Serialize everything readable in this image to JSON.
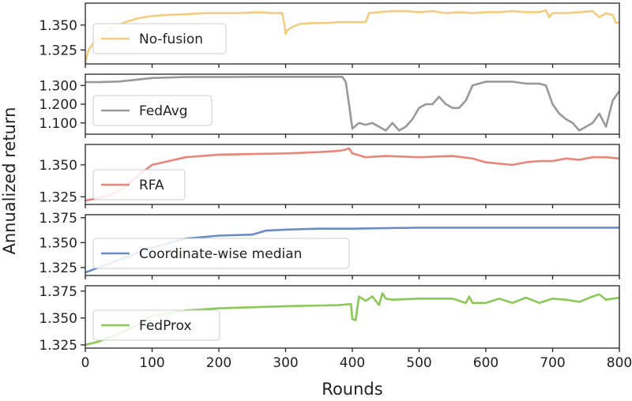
{
  "chart_data": {
    "type": "line",
    "xlabel": "Rounds",
    "ylabel": "Annualized return",
    "x_ticks": [
      "0",
      "100",
      "200",
      "300",
      "400",
      "500",
      "600",
      "700",
      "800"
    ],
    "xlim": [
      0,
      800
    ],
    "legend_position": "lower-left",
    "panels": [
      {
        "name": "No-fusion",
        "color": "#f5cc7f",
        "ylim": [
          1.311,
          1.372
        ],
        "y_ticks": [
          {
            "v": 1.325,
            "label": "1.325"
          },
          {
            "v": 1.35,
            "label": "1.350"
          }
        ],
        "x": [
          0,
          2,
          5,
          10,
          20,
          30,
          40,
          50,
          60,
          80,
          100,
          120,
          150,
          180,
          200,
          230,
          260,
          280,
          295,
          298,
          300,
          303,
          310,
          320,
          340,
          360,
          380,
          400,
          420,
          425,
          440,
          460,
          480,
          500,
          520,
          540,
          560,
          580,
          600,
          620,
          640,
          660,
          680,
          690,
          695,
          700,
          720,
          740,
          760,
          770,
          780,
          790,
          795,
          800
        ],
        "y": [
          1.311,
          1.318,
          1.325,
          1.33,
          1.338,
          1.343,
          1.347,
          1.35,
          1.353,
          1.357,
          1.359,
          1.36,
          1.361,
          1.362,
          1.362,
          1.362,
          1.363,
          1.362,
          1.362,
          1.352,
          1.341,
          1.345,
          1.348,
          1.351,
          1.352,
          1.352,
          1.353,
          1.353,
          1.353,
          1.362,
          1.363,
          1.364,
          1.364,
          1.363,
          1.364,
          1.362,
          1.363,
          1.362,
          1.363,
          1.363,
          1.364,
          1.363,
          1.363,
          1.365,
          1.358,
          1.362,
          1.362,
          1.363,
          1.364,
          1.358,
          1.362,
          1.36,
          1.352,
          1.353
        ]
      },
      {
        "name": "FedAvg",
        "color": "#999999",
        "ylim": [
          1.04,
          1.36
        ],
        "y_ticks": [
          {
            "v": 1.1,
            "label": "1.100"
          },
          {
            "v": 1.2,
            "label": "1.200"
          },
          {
            "v": 1.3,
            "label": "1.300"
          }
        ],
        "x": [
          0,
          20,
          50,
          80,
          100,
          150,
          200,
          250,
          300,
          350,
          385,
          390,
          395,
          400,
          410,
          420,
          430,
          440,
          450,
          460,
          470,
          480,
          490,
          500,
          510,
          520,
          530,
          540,
          550,
          560,
          570,
          580,
          600,
          620,
          640,
          660,
          680,
          690,
          700,
          710,
          720,
          730,
          740,
          750,
          760,
          770,
          780,
          790,
          800
        ],
        "y": [
          1.318,
          1.318,
          1.321,
          1.332,
          1.34,
          1.345,
          1.345,
          1.346,
          1.346,
          1.346,
          1.346,
          1.32,
          1.2,
          1.07,
          1.1,
          1.09,
          1.1,
          1.08,
          1.06,
          1.1,
          1.06,
          1.08,
          1.12,
          1.18,
          1.2,
          1.2,
          1.24,
          1.2,
          1.18,
          1.18,
          1.22,
          1.3,
          1.32,
          1.32,
          1.32,
          1.31,
          1.31,
          1.3,
          1.2,
          1.15,
          1.12,
          1.1,
          1.06,
          1.08,
          1.1,
          1.15,
          1.08,
          1.22,
          1.27
        ]
      },
      {
        "name": "RFA",
        "color": "#ec8579",
        "ylim": [
          1.319,
          1.366
        ],
        "y_ticks": [
          {
            "v": 1.325,
            "label": "1.325"
          },
          {
            "v": 1.35,
            "label": "1.350"
          }
        ],
        "x": [
          0,
          20,
          40,
          60,
          80,
          100,
          150,
          200,
          300,
          350,
          380,
          390,
          395,
          400,
          420,
          450,
          500,
          550,
          580,
          600,
          620,
          640,
          660,
          680,
          700,
          720,
          740,
          760,
          780,
          800
        ],
        "y": [
          1.322,
          1.324,
          1.327,
          1.333,
          1.342,
          1.35,
          1.356,
          1.358,
          1.359,
          1.36,
          1.361,
          1.362,
          1.363,
          1.359,
          1.356,
          1.357,
          1.356,
          1.357,
          1.355,
          1.352,
          1.351,
          1.35,
          1.352,
          1.353,
          1.353,
          1.355,
          1.354,
          1.356,
          1.356,
          1.355
        ]
      },
      {
        "name": "Coordinate-wise median",
        "color": "#6a8cc7",
        "ylim": [
          1.317,
          1.378
        ],
        "y_ticks": [
          {
            "v": 1.325,
            "label": "1.325"
          },
          {
            "v": 1.35,
            "label": "1.350"
          },
          {
            "v": 1.375,
            "label": "1.375"
          }
        ],
        "x": [
          0,
          20,
          40,
          60,
          80,
          100,
          150,
          200,
          250,
          270,
          300,
          350,
          400,
          500,
          600,
          700,
          800
        ],
        "y": [
          1.32,
          1.325,
          1.33,
          1.335,
          1.34,
          1.345,
          1.354,
          1.357,
          1.358,
          1.362,
          1.363,
          1.364,
          1.364,
          1.365,
          1.365,
          1.365,
          1.365
        ]
      },
      {
        "name": "FedProx",
        "color": "#8ac957",
        "ylim": [
          1.322,
          1.38
        ],
        "y_ticks": [
          {
            "v": 1.325,
            "label": "1.325"
          },
          {
            "v": 1.35,
            "label": "1.350"
          },
          {
            "v": 1.375,
            "label": "1.375"
          }
        ],
        "x": [
          0,
          20,
          40,
          60,
          80,
          100,
          150,
          200,
          300,
          380,
          398,
          400,
          405,
          410,
          420,
          430,
          440,
          445,
          450,
          460,
          500,
          550,
          570,
          575,
          580,
          600,
          620,
          640,
          660,
          680,
          700,
          720,
          740,
          760,
          770,
          780,
          800
        ],
        "y": [
          1.325,
          1.328,
          1.333,
          1.338,
          1.344,
          1.352,
          1.357,
          1.359,
          1.361,
          1.362,
          1.363,
          1.349,
          1.348,
          1.37,
          1.366,
          1.37,
          1.362,
          1.373,
          1.368,
          1.367,
          1.368,
          1.368,
          1.364,
          1.37,
          1.364,
          1.364,
          1.368,
          1.364,
          1.369,
          1.364,
          1.368,
          1.367,
          1.365,
          1.37,
          1.372,
          1.367,
          1.369
        ]
      }
    ]
  }
}
